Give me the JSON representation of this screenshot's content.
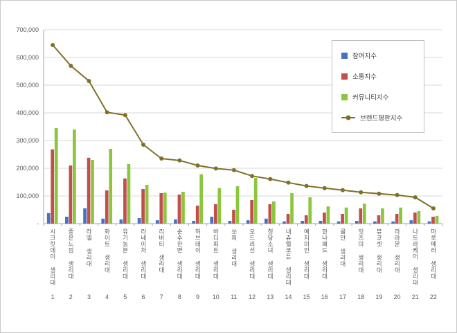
{
  "chart_data": {
    "type": "bar",
    "title": "",
    "xlabel": "",
    "ylabel": "",
    "categories": [
      "시크릿데이 생리대",
      "좋은느낌 생리대",
      "라엘 생리대",
      "화이트 생리대",
      "유기농본 생리대",
      "라네이처 생리대",
      "리버티 생리대",
      "순수한면 생리대",
      "허브데이 생리대",
      "바디피트 생리대",
      "쏘피 생리대",
      "오드리선 생리대",
      "청담소녀 생리대",
      "내츄럴코튼 생리대",
      "예지미인 생리대",
      "한나패드 생리대",
      "콜만 생리대",
      "잇츠미 생리대",
      "뷰코셋 생리대",
      "라라문 생리대",
      "나트라케어 생리대",
      "마로메라 생리대"
    ],
    "category_numbers": [
      1,
      2,
      3,
      4,
      5,
      6,
      7,
      8,
      9,
      10,
      11,
      12,
      13,
      14,
      15,
      16,
      17,
      18,
      19,
      20,
      21,
      22
    ],
    "series": [
      {
        "key": "participation",
        "name": "참여지수",
        "type": "bar",
        "color": "#4472C4",
        "values": [
          38000,
          25000,
          55000,
          18000,
          15000,
          20000,
          12000,
          15000,
          10000,
          25000,
          10000,
          12000,
          18000,
          8000,
          10000,
          10000,
          8000,
          10000,
          8000,
          8000,
          12000,
          8000
        ]
      },
      {
        "key": "communication",
        "name": "소통지수",
        "type": "bar",
        "color": "#C0504D",
        "values": [
          268000,
          210000,
          238000,
          120000,
          163000,
          125000,
          110000,
          105000,
          65000,
          70000,
          50000,
          85000,
          70000,
          35000,
          30000,
          40000,
          35000,
          55000,
          30000,
          35000,
          40000,
          25000
        ]
      },
      {
        "key": "community",
        "name": "커뮤니티지수",
        "type": "bar",
        "color": "#8CC63C",
        "values": [
          345000,
          340000,
          230000,
          270000,
          215000,
          140000,
          112000,
          115000,
          178000,
          128000,
          135000,
          165000,
          80000,
          110000,
          95000,
          62000,
          58000,
          72000,
          55000,
          58000,
          45000,
          28000
        ]
      },
      {
        "key": "brand-reputation",
        "name": "브랜드평판지수",
        "type": "line",
        "color": "#7F7029",
        "values": [
          645000,
          570000,
          515000,
          402000,
          392000,
          285000,
          235000,
          228000,
          210000,
          199000,
          193000,
          172000,
          161000,
          148000,
          136000,
          128000,
          121000,
          113000,
          108000,
          103000,
          95000,
          55000
        ]
      }
    ],
    "ylim": [
      0,
      700000
    ],
    "ytick_interval": 100000,
    "ytick_labels": [
      "700,000",
      "600,000",
      "500,000",
      "400,000",
      "300,000",
      "200,000",
      "100,000",
      "-"
    ],
    "grid": true,
    "legend_position": "upper-right-inside"
  }
}
